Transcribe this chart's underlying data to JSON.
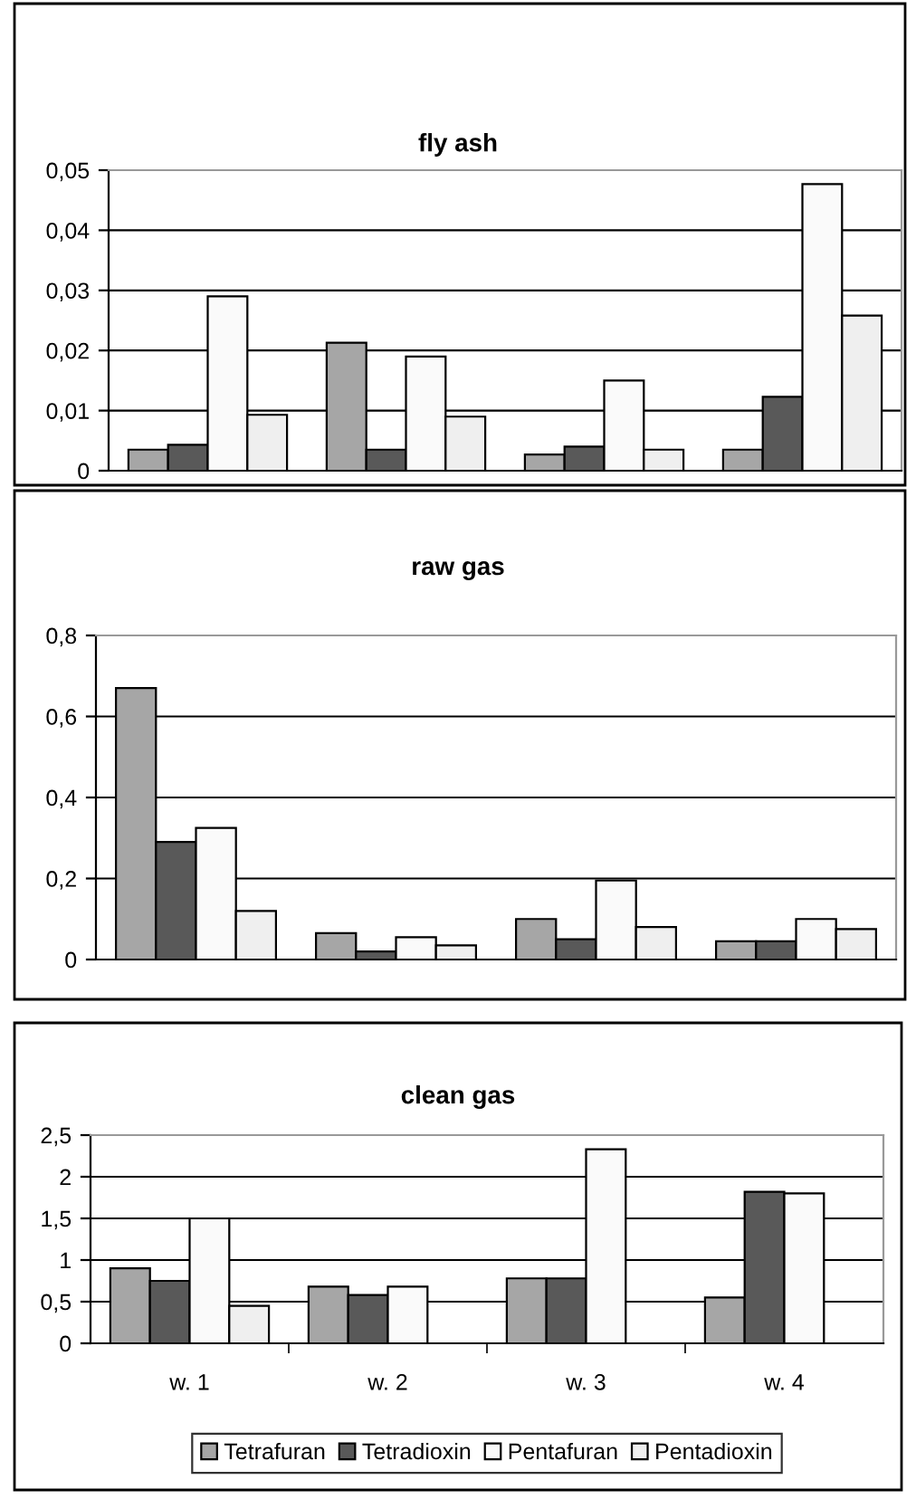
{
  "chart_data": [
    {
      "type": "bar",
      "title": "fly ash",
      "categories": [
        null,
        null,
        null,
        null
      ],
      "tick_labels": "y",
      "grid": "y",
      "legend": false,
      "ylim": [
        0,
        0.05
      ],
      "yticks": [
        0,
        {
          "value": 0.01,
          "label": "0,01"
        },
        {
          "value": 0.02,
          "label": "0,02"
        },
        {
          "value": 0.03,
          "label": "0,03"
        },
        {
          "value": 0.04,
          "label": "0,04"
        },
        {
          "value": 0.05,
          "label": "0,05"
        }
      ],
      "series": [
        {
          "color": "#a6a6a6",
          "values": [
            0.0035,
            0.0213,
            0.0027,
            0.0035
          ]
        },
        {
          "color": "#595959",
          "values": [
            0.0043,
            0.0035,
            0.004,
            0.0123
          ]
        },
        {
          "color": "#fafafa",
          "values": [
            0.029,
            0.019,
            0.015,
            0.0477
          ]
        },
        {
          "color": "#efefef",
          "values": [
            0.0093,
            0.009,
            0.0035,
            0.0258
          ]
        }
      ]
    },
    {
      "type": "bar",
      "title": "raw gas",
      "categories": [
        null,
        null,
        null,
        null
      ],
      "tick_labels": "y",
      "grid": "y",
      "legend": false,
      "ylim": [
        0,
        0.8
      ],
      "yticks": [
        0,
        {
          "value": 0.2,
          "label": "0,2"
        },
        {
          "value": 0.4,
          "label": "0,4"
        },
        {
          "value": 0.6,
          "label": "0,6"
        },
        {
          "value": 0.8,
          "label": "0,8"
        }
      ],
      "series": [
        {
          "color": "#a6a6a6",
          "values": [
            0.67,
            0.065,
            0.1,
            0.045
          ]
        },
        {
          "color": "#595959",
          "values": [
            0.29,
            0.02,
            0.05,
            0.045
          ]
        },
        {
          "color": "#fafafa",
          "values": [
            0.325,
            0.055,
            0.195,
            0.1
          ]
        },
        {
          "color": "#efefef",
          "values": [
            0.12,
            0.035,
            0.08,
            0.075
          ]
        }
      ]
    },
    {
      "type": "bar",
      "title": "clean gas",
      "categories": [
        "w. 1",
        "w. 2",
        "w. 3",
        "w. 4"
      ],
      "grid": "y",
      "legend": "bottom",
      "ylim": [
        0,
        2.5
      ],
      "yticks": [
        0,
        {
          "value": 0.5,
          "label": "0,5"
        },
        1,
        {
          "value": 1.5,
          "label": "1,5"
        },
        2,
        {
          "value": 2.5,
          "label": "2,5"
        }
      ],
      "series": [
        {
          "name": "Tetrafuran",
          "color": "#a6a6a6",
          "values": [
            0.9,
            0.68,
            0.78,
            0.55
          ]
        },
        {
          "name": "Tetradioxin",
          "color": "#595959",
          "values": [
            0.75,
            0.58,
            0.78,
            1.82
          ]
        },
        {
          "name": "Pentafuran",
          "color": "#fafafa",
          "values": [
            1.5,
            0.68,
            2.33,
            1.8
          ]
        },
        {
          "name": "Pentadioxin",
          "color": "#efefef",
          "values": [
            0.45,
            null,
            null,
            null
          ]
        }
      ]
    }
  ]
}
